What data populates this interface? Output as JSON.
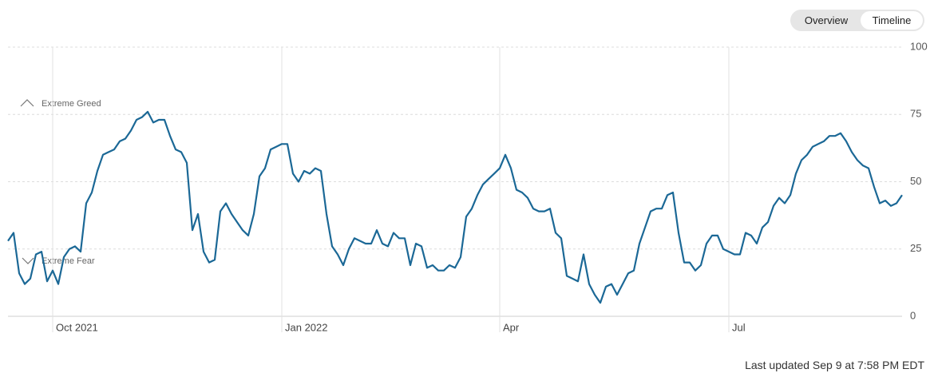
{
  "toggle": {
    "options": [
      "Overview",
      "Timeline"
    ]
  },
  "chart_data": {
    "type": "line",
    "annotations": [
      "Extreme Greed",
      "Extreme Fear"
    ],
    "color": "#1b6896",
    "ylim": [
      0,
      100
    ],
    "yticks": [
      0,
      25,
      50,
      75,
      100
    ],
    "grid": true,
    "categories": [
      null,
      null,
      null,
      null,
      null,
      null,
      null,
      null,
      "Oct 2021",
      null,
      null,
      null,
      null,
      null,
      null,
      null,
      null,
      null,
      null,
      null,
      null,
      null,
      null,
      null,
      null,
      null,
      null,
      null,
      null,
      null,
      null,
      null,
      null,
      null,
      null,
      null,
      null,
      null,
      null,
      null,
      null,
      null,
      null,
      null,
      null,
      null,
      null,
      null,
      null,
      "Jan 2022",
      null,
      null,
      null,
      null,
      null,
      null,
      null,
      null,
      null,
      null,
      null,
      null,
      null,
      null,
      null,
      null,
      null,
      null,
      null,
      null,
      null,
      null,
      null,
      null,
      null,
      null,
      null,
      null,
      null,
      null,
      null,
      null,
      null,
      null,
      null,
      null,
      null,
      null,
      "Apr",
      null,
      null,
      null,
      null,
      null,
      null,
      null,
      null,
      null,
      null,
      null,
      null,
      null,
      null,
      null,
      null,
      null,
      null,
      null,
      null,
      null,
      null,
      null,
      null,
      null,
      null,
      null,
      null,
      null,
      null,
      null,
      null,
      null,
      null,
      null,
      null,
      null,
      null,
      null,
      null,
      "Jul",
      null,
      null,
      null,
      null,
      null,
      null,
      null,
      null,
      null,
      null,
      null,
      null,
      null,
      null,
      null,
      null,
      null,
      null,
      null,
      null,
      null,
      null,
      null,
      null,
      null,
      null,
      null,
      null,
      null,
      null,
      null
    ],
    "values": [
      28,
      31,
      16,
      12,
      14,
      23,
      24,
      13,
      17,
      12,
      22,
      25,
      26,
      24,
      42,
      46,
      54,
      60,
      61,
      62,
      65,
      66,
      69,
      73,
      74,
      76,
      72,
      73,
      73,
      67,
      62,
      61,
      57,
      32,
      38,
      24,
      20,
      21,
      39,
      42,
      38,
      35,
      32,
      30,
      38,
      52,
      55,
      62,
      63,
      64,
      64,
      53,
      50,
      54,
      53,
      55,
      54,
      38,
      26,
      23,
      19,
      25,
      29,
      28,
      27,
      27,
      32,
      27,
      26,
      31,
      29,
      29,
      19,
      27,
      26,
      18,
      19,
      17,
      17,
      19,
      18,
      22,
      37,
      40,
      45,
      49,
      51,
      53,
      55,
      60,
      55,
      47,
      46,
      44,
      40,
      39,
      39,
      40,
      31,
      29,
      15,
      14,
      13,
      23,
      12,
      8,
      5,
      11,
      12,
      8,
      12,
      16,
      17,
      27,
      33,
      39,
      40,
      40,
      45,
      46,
      31,
      20,
      20,
      17,
      19,
      27,
      30,
      30,
      25,
      24,
      23,
      23,
      31,
      30,
      27,
      33,
      35,
      41,
      44,
      42,
      45,
      53,
      58,
      60,
      63,
      64,
      65,
      67,
      67,
      68,
      65,
      61,
      58,
      56,
      55,
      48,
      42,
      43,
      41,
      42,
      45
    ]
  },
  "footer": "Last updated Sep 9 at 7:58 PM EDT"
}
